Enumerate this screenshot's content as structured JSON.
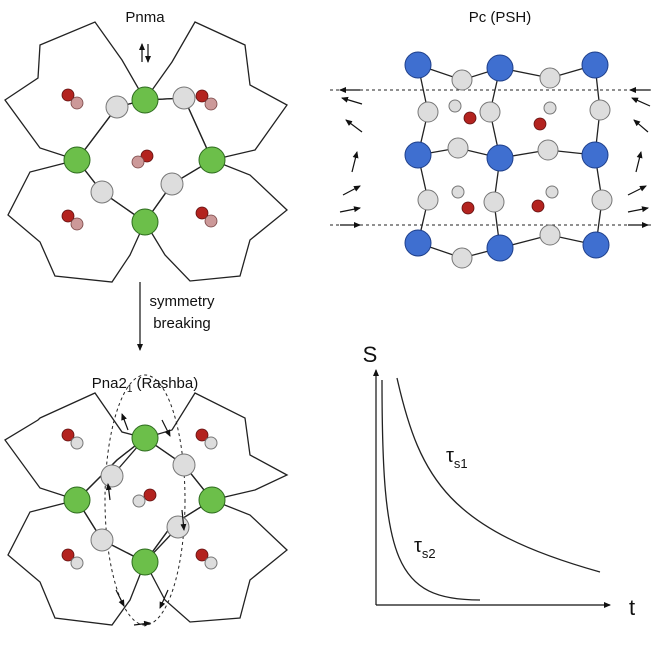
{
  "panels": {
    "pnma": {
      "title": "Pnma"
    },
    "pc": {
      "title": "Pc (PSH)"
    },
    "transition": {
      "lines": [
        "symmetry",
        "breaking"
      ]
    },
    "rashba": {
      "title": {
        "base": "Pna2",
        "sub": "1",
        "rest": " (Rashba)"
      }
    },
    "decay": {
      "y_label": "S",
      "x_label": "t",
      "curve_1": {
        "base": "τ",
        "sub": "s1"
      },
      "curve_2": {
        "base": "τ",
        "sub": "s2"
      }
    }
  }
}
